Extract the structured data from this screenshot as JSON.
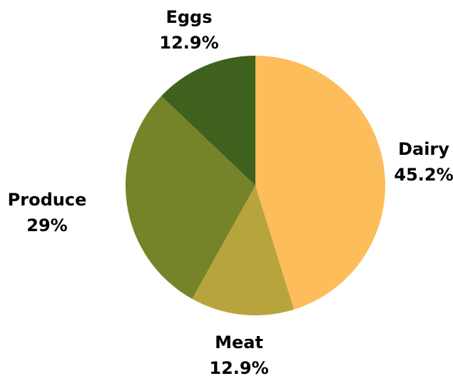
{
  "chart_data": {
    "type": "pie",
    "start": "12 o'clock",
    "direction": "clockwise",
    "slices": [
      {
        "label": "Dairy",
        "value": 45.2,
        "value_label": "45.2%",
        "color": "#FDBD5A"
      },
      {
        "label": "Meat",
        "value": 12.9,
        "value_label": "12.9%",
        "color": "#B8A43C"
      },
      {
        "label": "Produce",
        "value": 29,
        "value_label": "29%",
        "color": "#778329"
      },
      {
        "label": "Eggs",
        "value": 12.9,
        "value_label": "12.9%",
        "color": "#3E621D"
      }
    ]
  }
}
